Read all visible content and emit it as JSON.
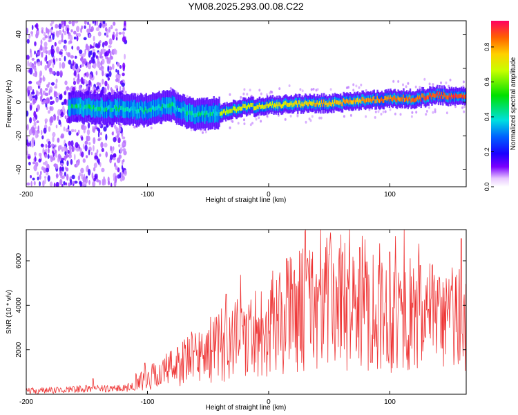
{
  "figure": {
    "title": "YM08.2025.293.00.08.C22"
  },
  "chart_data": [
    {
      "type": "heatmap",
      "name": "spectrogram",
      "xlabel": "Height of straight line (km)",
      "ylabel": "Frequency (Hz)",
      "xlim": [
        -200,
        163
      ],
      "ylim": [
        -50,
        48
      ],
      "xticks": [
        -200,
        -100,
        0,
        100
      ],
      "yticks": [
        -40,
        -20,
        0,
        20,
        40
      ],
      "colorbar": {
        "label": "Normalized spectral amplitude",
        "range": [
          0,
          0.95
        ],
        "ticks": [
          "0.0",
          "0.2",
          "0.4",
          "0.6",
          "0.8"
        ],
        "tick_values": [
          0,
          0.2,
          0.4,
          0.6,
          0.8
        ]
      },
      "noise_region_x": [
        -200,
        -118
      ],
      "ridge_frequency": [
        {
          "x": -160,
          "y": -3
        },
        {
          "x": -120,
          "y": -4
        },
        {
          "x": -100,
          "y": -5
        },
        {
          "x": -80,
          "y": -2
        },
        {
          "x": -60,
          "y": -8
        },
        {
          "x": -40,
          "y": -6
        },
        {
          "x": -20,
          "y": -3
        },
        {
          "x": 0,
          "y": -2
        },
        {
          "x": 20,
          "y": -1
        },
        {
          "x": 40,
          "y": -1
        },
        {
          "x": 60,
          "y": 0
        },
        {
          "x": 80,
          "y": 1
        },
        {
          "x": 100,
          "y": 2
        },
        {
          "x": 120,
          "y": 2
        },
        {
          "x": 140,
          "y": 4
        },
        {
          "x": 163,
          "y": 3
        }
      ]
    },
    {
      "type": "line",
      "name": "snr",
      "xlabel": "Height of straight line (km)",
      "ylabel": "SNR (10 * v/v)",
      "xlim": [
        -200,
        163
      ],
      "ylim": [
        0,
        7400
      ],
      "xticks": [
        -200,
        -100,
        0,
        100
      ],
      "yticks": [
        2000,
        4000,
        6000
      ],
      "color": "#ee3333",
      "envelope": [
        {
          "x": -200,
          "y": 120
        },
        {
          "x": -150,
          "y": 250
        },
        {
          "x": -120,
          "y": 260
        },
        {
          "x": -100,
          "y": 700
        },
        {
          "x": -80,
          "y": 1200
        },
        {
          "x": -60,
          "y": 1700
        },
        {
          "x": -40,
          "y": 2200
        },
        {
          "x": -20,
          "y": 2600
        },
        {
          "x": 0,
          "y": 3100
        },
        {
          "x": 20,
          "y": 3700
        },
        {
          "x": 40,
          "y": 4100
        },
        {
          "x": 60,
          "y": 4200
        },
        {
          "x": 80,
          "y": 4100
        },
        {
          "x": 100,
          "y": 3800
        },
        {
          "x": 120,
          "y": 3500
        },
        {
          "x": 140,
          "y": 3300
        },
        {
          "x": 163,
          "y": 3600
        }
      ],
      "peaks": [
        {
          "x": -145,
          "y": 700
        },
        {
          "x": -102,
          "y": 1400
        },
        {
          "x": -75,
          "y": 2100
        },
        {
          "x": -35,
          "y": 4500
        },
        {
          "x": 15,
          "y": 6100
        },
        {
          "x": 30,
          "y": 7300
        },
        {
          "x": 50,
          "y": 6300
        },
        {
          "x": 75,
          "y": 6600
        },
        {
          "x": 100,
          "y": 6400
        },
        {
          "x": 125,
          "y": 5800
        },
        {
          "x": 159,
          "y": 7000
        }
      ]
    }
  ]
}
